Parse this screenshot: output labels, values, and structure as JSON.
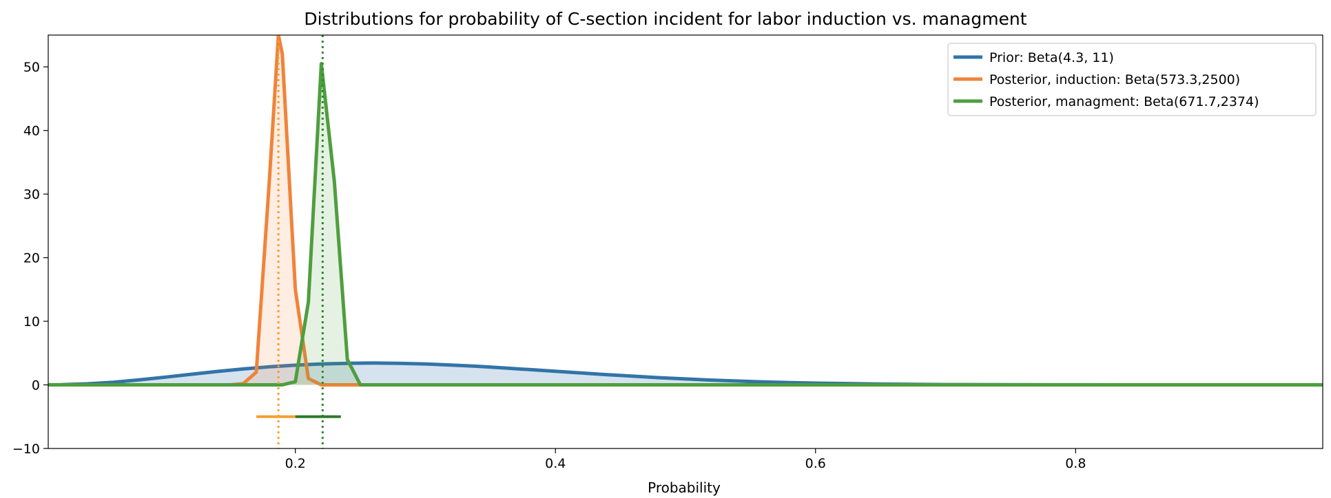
{
  "chart_data": {
    "type": "line",
    "title": "Distributions for probability of C-section incident for labor induction vs. managment",
    "xlabel": "Probability",
    "ylabel": "",
    "xlim": [
      0.01,
      0.99
    ],
    "ylim": [
      -10,
      55
    ],
    "xticks": [
      0.2,
      0.4,
      0.6,
      0.8
    ],
    "xtick_labels": [
      "0.2",
      "0.4",
      "0.6",
      "0.8"
    ],
    "yticks": [
      -10,
      0,
      10,
      20,
      30,
      40,
      50
    ],
    "ytick_labels": [
      "−10",
      "0",
      "10",
      "20",
      "30",
      "40",
      "50"
    ],
    "grid": false,
    "legend_position": "top-right",
    "series": [
      {
        "name": "Prior: Beta(4.3, 11)",
        "color": "#3274a8",
        "fill_opacity": 0.2,
        "x": [
          0.0,
          0.02,
          0.04,
          0.06,
          0.08,
          0.1,
          0.12,
          0.14,
          0.16,
          0.18,
          0.2,
          0.22,
          0.24,
          0.26,
          0.28,
          0.3,
          0.32,
          0.34,
          0.36,
          0.38,
          0.4,
          0.44,
          0.48,
          0.52,
          0.56,
          0.6,
          0.65,
          0.7,
          0.8,
          0.9,
          1.0
        ],
        "y": [
          0.0,
          0.03,
          0.17,
          0.42,
          0.78,
          1.22,
          1.67,
          2.11,
          2.5,
          2.84,
          3.1,
          3.29,
          3.39,
          3.43,
          3.39,
          3.29,
          3.12,
          2.92,
          2.67,
          2.41,
          2.14,
          1.61,
          1.13,
          0.75,
          0.46,
          0.27,
          0.12,
          0.05,
          0.01,
          0.0,
          0.0
        ]
      },
      {
        "name": "Posterior, induction: Beta(573.3,2500)",
        "color": "#f0833a",
        "fill_opacity": 0.15,
        "x": [
          0.0,
          0.15,
          0.16,
          0.17,
          0.18,
          0.187,
          0.19,
          0.2,
          0.21,
          0.22,
          0.23,
          0.24,
          0.25,
          1.0
        ],
        "y": [
          0.0,
          0.0,
          0.2,
          2.0,
          32.0,
          55.0,
          52.0,
          15.0,
          1.0,
          0.0,
          0.0,
          0.0,
          0.0,
          0.0
        ]
      },
      {
        "name": "Posterior, managment: Beta(671.7,2374)",
        "color": "#4f9e3f",
        "fill_opacity": 0.15,
        "x": [
          0.0,
          0.18,
          0.19,
          0.2,
          0.21,
          0.22,
          0.23,
          0.24,
          0.25,
          1.0
        ],
        "y": [
          0.0,
          0.0,
          0.0,
          0.5,
          13.0,
          50.5,
          32.0,
          4.0,
          0.0,
          0.0
        ]
      }
    ],
    "reference_lines": [
      {
        "x": 0.187,
        "color": "#f5a02e",
        "style": "dotted"
      },
      {
        "x": 0.221,
        "color": "#2f8a2f",
        "style": "dotted"
      }
    ],
    "intervals": [
      {
        "x_start": 0.17,
        "x_end": 0.2,
        "y": -5,
        "color": "#f5a02e"
      },
      {
        "x_start": 0.2,
        "x_end": 0.235,
        "y": -5,
        "color": "#2f7a2a"
      }
    ]
  }
}
